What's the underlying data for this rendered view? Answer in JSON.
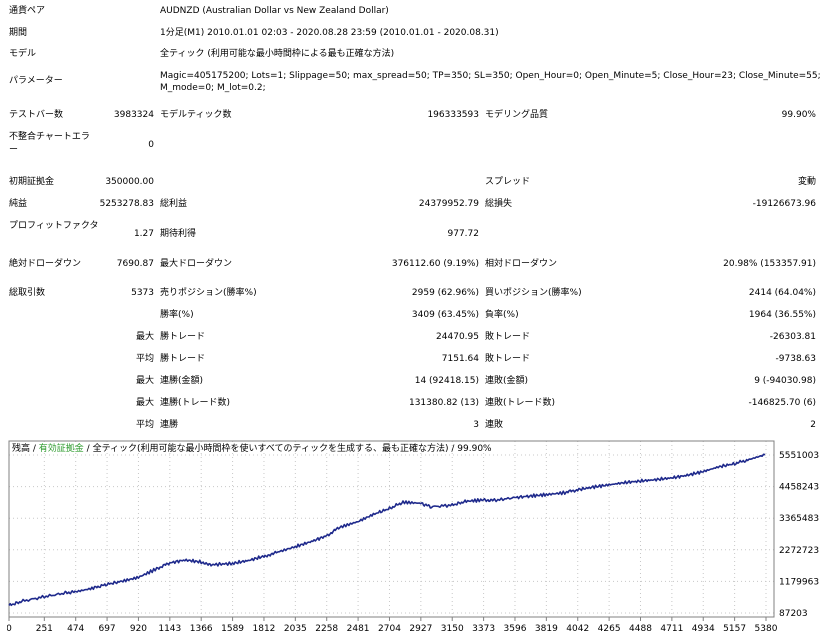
{
  "report": {
    "symbol_label": "通貨ペア",
    "symbol_value": "AUDNZD (Australian Dollar vs New Zealand Dollar)",
    "period_label": "期間",
    "period_value": "1分足(M1) 2010.01.01 02:03 - 2020.08.28 23:59 (2010.01.01 - 2020.08.31)",
    "model_label": "モデル",
    "model_value": "全ティック (利用可能な最小時間枠による最も正確な方法)",
    "params_label": "パラメーター",
    "params_line1": "Magic=405175200; Lots=1; Slippage=50; max_spread=50; TP=350; SL=350; Open_Hour=0; Open_Minute=5; Close_Hour=23; Close_Minute=55;",
    "params_line2": "M_mode=0; M_lot=0.2;",
    "bars_label": "テストバー数",
    "bars_value": "3983324",
    "ticks_label": "モデルティック数",
    "ticks_value": "196333593",
    "quality_label": "モデリング品質",
    "quality_value": "99.90%",
    "mismatch_label": "不整合チャートエラー",
    "mismatch_value": "0",
    "deposit_label": "初期証拠金",
    "deposit_value": "350000.00",
    "spread_label": "スプレッド",
    "spread_value": "変動",
    "net_label": "純益",
    "net_value": "5253278.83",
    "gross_profit_label": "総利益",
    "gross_profit_value": "24379952.79",
    "gross_loss_label": "総損失",
    "gross_loss_value": "-19126673.96",
    "pf_label": "プロフィットファクタ",
    "pf_value": "1.27",
    "payoff_label": "期待利得",
    "payoff_value": "977.72",
    "abs_dd_label": "絶対ドローダウン",
    "abs_dd_value": "7690.87",
    "max_dd_label": "最大ドローダウン",
    "max_dd_value": "376112.60 (9.19%)",
    "rel_dd_label": "相対ドローダウン",
    "rel_dd_value": "20.98% (153357.91)",
    "trades_label": "総取引数",
    "trades_value": "5373",
    "short_label": "売りポジション(勝率%)",
    "short_value": "2959 (62.96%)",
    "long_label": "買いポジション(勝率%)",
    "long_value": "2414 (64.04%)",
    "winrate_label": "勝率(%)",
    "winrate_value": "3409 (63.45%)",
    "lossrate_label": "負率(%)",
    "lossrate_value": "1964 (36.55%)",
    "max_word": "最大",
    "avg_word": "平均",
    "largest_win_label": "勝トレード",
    "largest_win_value": "24470.95",
    "largest_loss_label": "敗トレード",
    "largest_loss_value": "-26303.81",
    "avg_win_label": "勝トレード",
    "avg_win_value": "7151.64",
    "avg_loss_label": "敗トレード",
    "avg_loss_value": "-9738.63",
    "cons_win_money_label": "連勝(金額)",
    "cons_win_money_value": "14 (92418.15)",
    "cons_loss_money_label": "連敗(金額)",
    "cons_loss_money_value": "9 (-94030.98)",
    "cons_win_trades_label": "連勝(トレード数)",
    "cons_win_trades_value": "131380.82 (13)",
    "cons_loss_trades_label": "連敗(トレード数)",
    "cons_loss_trades_value": "-146825.70 (6)",
    "avg_cons_win_label": "連勝",
    "avg_cons_win_value": "3",
    "avg_cons_loss_label": "連敗",
    "avg_cons_loss_value": "2"
  },
  "chart_data": {
    "type": "line",
    "legend": {
      "balance": "残高",
      "sep1": " / ",
      "equity": "有効証拠金",
      "sep2": " / ",
      "model": "全ティック(利用可能な最小時間枠を使いすべてのティックを生成する、最も正確な方法)",
      "quality": " / 99.90%"
    },
    "colors": {
      "line": "#1f2a8c",
      "equity_text": "#2e9b2e",
      "grid": "#c8c8c8"
    },
    "x_ticks": [
      "0",
      "251",
      "474",
      "697",
      "920",
      "1143",
      "1366",
      "1589",
      "1812",
      "2035",
      "2258",
      "2481",
      "2704",
      "2927",
      "3150",
      "3373",
      "3596",
      "3819",
      "4042",
      "4265",
      "4488",
      "4711",
      "4934",
      "5157",
      "5380"
    ],
    "y_ticks": [
      "5551003",
      "4458243",
      "3365483",
      "2272723",
      "1179963",
      "87203"
    ],
    "xlim": [
      0,
      5380
    ],
    "ylim": [
      87203,
      5551003
    ],
    "series": [
      {
        "x": [
          0,
          100,
          251,
          400,
          474,
          600,
          697,
          800,
          920,
          1050,
          1143,
          1250,
          1366,
          1450,
          1589,
          1700,
          1812,
          1900,
          2035,
          2150,
          2258,
          2350,
          2481,
          2600,
          2704,
          2800,
          2927,
          3000,
          3150,
          3250,
          3373,
          3450,
          3596,
          3700,
          3819,
          3950,
          4042,
          4150,
          4265,
          4380,
          4488,
          4600,
          4711,
          4820,
          4934,
          5050,
          5157,
          5250,
          5373
        ],
        "y": [
          350000,
          500000,
          650000,
          780000,
          820000,
          950000,
          1080000,
          1180000,
          1320000,
          1620000,
          1820000,
          1920000,
          1850000,
          1760000,
          1800000,
          1900000,
          2050000,
          2180000,
          2380000,
          2560000,
          2760000,
          3050000,
          3250000,
          3520000,
          3700000,
          3920000,
          3880000,
          3760000,
          3820000,
          3950000,
          4000000,
          3980000,
          4080000,
          4130000,
          4180000,
          4250000,
          4350000,
          4440000,
          4520000,
          4600000,
          4650000,
          4700000,
          4760000,
          4850000,
          4980000,
          5150000,
          5250000,
          5380000,
          5560000
        ]
      }
    ]
  }
}
